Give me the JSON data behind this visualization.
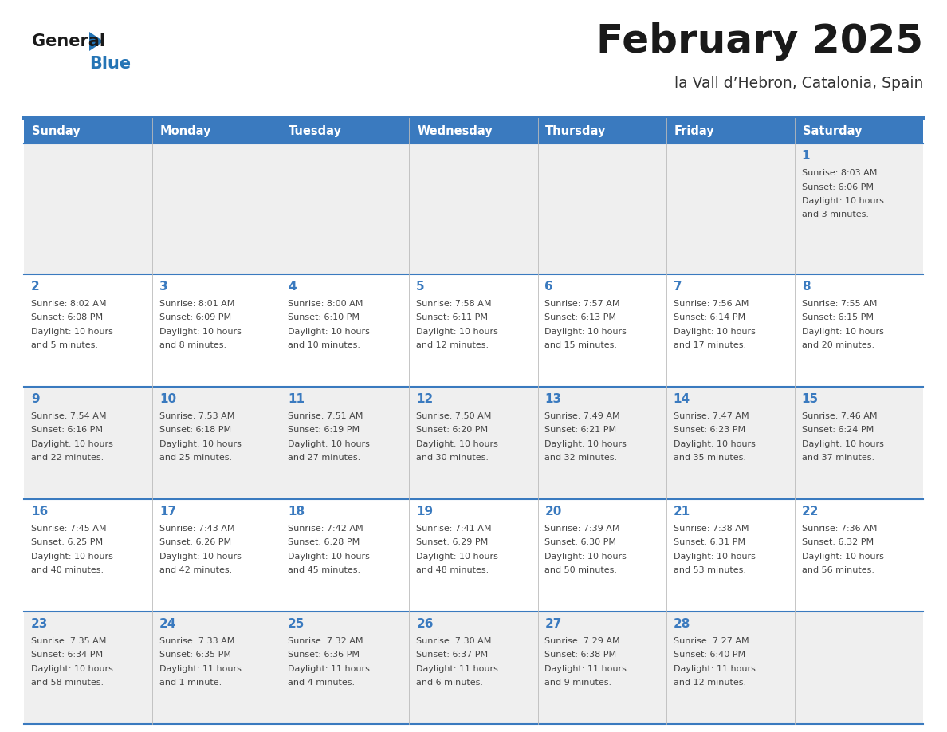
{
  "title": "February 2025",
  "subtitle": "la Vall d’Hebron, Catalonia, Spain",
  "days_of_week": [
    "Sunday",
    "Monday",
    "Tuesday",
    "Wednesday",
    "Thursday",
    "Friday",
    "Saturday"
  ],
  "header_bg": "#3a7abf",
  "header_text": "#ffffff",
  "row_bg_odd": "#efefef",
  "row_bg_even": "#ffffff",
  "border_color": "#3a7abf",
  "day_num_color": "#3a7abf",
  "cell_text_color": "#444444",
  "title_color": "#1a1a1a",
  "subtitle_color": "#333333",
  "logo_general_color": "#1a1a1a",
  "logo_blue_color": "#2474b5",
  "calendar_data": [
    [
      null,
      null,
      null,
      null,
      null,
      null,
      {
        "day": "1",
        "sunrise": "8:03 AM",
        "sunset": "6:06 PM",
        "daylight": "10 hours and 3 minutes."
      }
    ],
    [
      {
        "day": "2",
        "sunrise": "8:02 AM",
        "sunset": "6:08 PM",
        "daylight": "10 hours and 5 minutes."
      },
      {
        "day": "3",
        "sunrise": "8:01 AM",
        "sunset": "6:09 PM",
        "daylight": "10 hours and 8 minutes."
      },
      {
        "day": "4",
        "sunrise": "8:00 AM",
        "sunset": "6:10 PM",
        "daylight": "10 hours and 10 minutes."
      },
      {
        "day": "5",
        "sunrise": "7:58 AM",
        "sunset": "6:11 PM",
        "daylight": "10 hours and 12 minutes."
      },
      {
        "day": "6",
        "sunrise": "7:57 AM",
        "sunset": "6:13 PM",
        "daylight": "10 hours and 15 minutes."
      },
      {
        "day": "7",
        "sunrise": "7:56 AM",
        "sunset": "6:14 PM",
        "daylight": "10 hours and 17 minutes."
      },
      {
        "day": "8",
        "sunrise": "7:55 AM",
        "sunset": "6:15 PM",
        "daylight": "10 hours and 20 minutes."
      }
    ],
    [
      {
        "day": "9",
        "sunrise": "7:54 AM",
        "sunset": "6:16 PM",
        "daylight": "10 hours and 22 minutes."
      },
      {
        "day": "10",
        "sunrise": "7:53 AM",
        "sunset": "6:18 PM",
        "daylight": "10 hours and 25 minutes."
      },
      {
        "day": "11",
        "sunrise": "7:51 AM",
        "sunset": "6:19 PM",
        "daylight": "10 hours and 27 minutes."
      },
      {
        "day": "12",
        "sunrise": "7:50 AM",
        "sunset": "6:20 PM",
        "daylight": "10 hours and 30 minutes."
      },
      {
        "day": "13",
        "sunrise": "7:49 AM",
        "sunset": "6:21 PM",
        "daylight": "10 hours and 32 minutes."
      },
      {
        "day": "14",
        "sunrise": "7:47 AM",
        "sunset": "6:23 PM",
        "daylight": "10 hours and 35 minutes."
      },
      {
        "day": "15",
        "sunrise": "7:46 AM",
        "sunset": "6:24 PM",
        "daylight": "10 hours and 37 minutes."
      }
    ],
    [
      {
        "day": "16",
        "sunrise": "7:45 AM",
        "sunset": "6:25 PM",
        "daylight": "10 hours and 40 minutes."
      },
      {
        "day": "17",
        "sunrise": "7:43 AM",
        "sunset": "6:26 PM",
        "daylight": "10 hours and 42 minutes."
      },
      {
        "day": "18",
        "sunrise": "7:42 AM",
        "sunset": "6:28 PM",
        "daylight": "10 hours and 45 minutes."
      },
      {
        "day": "19",
        "sunrise": "7:41 AM",
        "sunset": "6:29 PM",
        "daylight": "10 hours and 48 minutes."
      },
      {
        "day": "20",
        "sunrise": "7:39 AM",
        "sunset": "6:30 PM",
        "daylight": "10 hours and 50 minutes."
      },
      {
        "day": "21",
        "sunrise": "7:38 AM",
        "sunset": "6:31 PM",
        "daylight": "10 hours and 53 minutes."
      },
      {
        "day": "22",
        "sunrise": "7:36 AM",
        "sunset": "6:32 PM",
        "daylight": "10 hours and 56 minutes."
      }
    ],
    [
      {
        "day": "23",
        "sunrise": "7:35 AM",
        "sunset": "6:34 PM",
        "daylight": "10 hours and 58 minutes."
      },
      {
        "day": "24",
        "sunrise": "7:33 AM",
        "sunset": "6:35 PM",
        "daylight": "11 hours and 1 minute."
      },
      {
        "day": "25",
        "sunrise": "7:32 AM",
        "sunset": "6:36 PM",
        "daylight": "11 hours and 4 minutes."
      },
      {
        "day": "26",
        "sunrise": "7:30 AM",
        "sunset": "6:37 PM",
        "daylight": "11 hours and 6 minutes."
      },
      {
        "day": "27",
        "sunrise": "7:29 AM",
        "sunset": "6:38 PM",
        "daylight": "11 hours and 9 minutes."
      },
      {
        "day": "28",
        "sunrise": "7:27 AM",
        "sunset": "6:40 PM",
        "daylight": "11 hours and 12 minutes."
      },
      null
    ]
  ]
}
